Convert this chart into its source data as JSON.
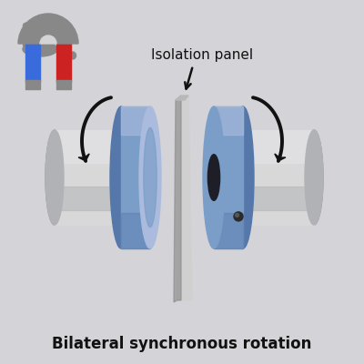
{
  "bg_color": "#d4d4d8",
  "text_bottom": "Bilateral synchronous rotation",
  "text_label": "Isolation panel",
  "text_color": "#111111",
  "magnet_blue": "#3a6bdd",
  "magnet_red": "#cc2222",
  "magnet_gray": "#888888",
  "disc_blue_mid": "#7b9ec8",
  "disc_blue_dark": "#5577aa",
  "disc_blue_light": "#aabbdd",
  "disc_blue_edge": "#667799",
  "metal_light": "#d8d8d8",
  "metal_mid": "#b0b2b5",
  "metal_dark": "#909090",
  "metal_shine": "#e5e5e8",
  "metal_shadow": "#7a7a80",
  "panel_light": "#d0d0d0",
  "panel_mid": "#b8b8b8",
  "panel_dark": "#909090",
  "arrow_color": "#111111"
}
